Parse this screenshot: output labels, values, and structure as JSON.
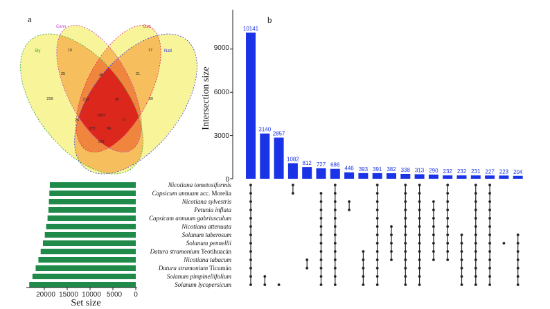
{
  "panel_labels": {
    "a": "a",
    "b": "b"
  },
  "venn": {
    "sets": [
      {
        "name": "Sly",
        "color": "#2ca02c"
      },
      {
        "name": "Cann",
        "color": "#c03cc0"
      },
      {
        "name": "Dstt",
        "color": "#e0205a"
      },
      {
        "name": "Natt",
        "color": "#3a3ae0"
      }
    ],
    "regions": [
      "10",
      "17",
      "209",
      "25",
      "45",
      "21",
      "60",
      "212",
      "60",
      "1602",
      "26",
      "17",
      "272",
      "86",
      "163"
    ],
    "colors": {
      "fill": "#f7f49a",
      "overlap2": "#f5b04c",
      "overlap3": "#ee7e3c",
      "core": "#d81818"
    }
  },
  "chart_data": {
    "type": "bar",
    "title": "",
    "ylabel": "Intersection size",
    "xlabel": "",
    "ylim": [
      0,
      11500
    ],
    "yticks": [
      "0",
      "3000",
      "6000",
      "9000"
    ],
    "bar_color": "#1a33e6",
    "values": [
      10141,
      3140,
      2857,
      1082,
      812,
      727,
      686,
      446,
      393,
      391,
      382,
      338,
      313,
      290,
      232,
      232,
      231,
      227,
      223,
      204
    ],
    "set_names": [
      [
        "Nicotiana tometosiformis",
        ""
      ],
      [
        "Capsicum annuum ",
        "acc. Morelia"
      ],
      [
        "Nicotiana sylvestris",
        ""
      ],
      [
        "Petunia inflata",
        ""
      ],
      [
        "Capsicum annuum gabriusculum",
        ""
      ],
      [
        "Nicotiana attenuata",
        ""
      ],
      [
        "Solanum tuberosum",
        ""
      ],
      [
        "Solanum pennellii",
        ""
      ],
      [
        "Datura stramonium ",
        "Teotihuacán"
      ],
      [
        "Nicotiana tabacum",
        ""
      ],
      [
        "Datura stramonium ",
        "Ticumán"
      ],
      [
        "Solanum pimpinellifolium",
        ""
      ],
      [
        "Solanum lycopersicum",
        ""
      ]
    ],
    "membership": [
      [
        0,
        1,
        2,
        3,
        4,
        5,
        6,
        7,
        8,
        9,
        10,
        11,
        12
      ],
      [
        11,
        12
      ],
      [
        12
      ],
      [
        0,
        1
      ],
      [
        9,
        10
      ],
      [
        1,
        2,
        3,
        4,
        5,
        6,
        7,
        8,
        9,
        10,
        11,
        12
      ],
      [
        0,
        1,
        2,
        3,
        4,
        5,
        6,
        7,
        8,
        9,
        10,
        11,
        12
      ],
      [
        2,
        3
      ],
      [
        8,
        9,
        10,
        11,
        12
      ],
      [
        0,
        1,
        2,
        3,
        4,
        5,
        6,
        7,
        8,
        9,
        10,
        11,
        12
      ],
      [
        5,
        6,
        7,
        8,
        9
      ],
      [
        0,
        1,
        2,
        3,
        4,
        5,
        6,
        7,
        8,
        9,
        10,
        11,
        12
      ],
      [
        0,
        1,
        2,
        3,
        4,
        5,
        6,
        7,
        8,
        9,
        10,
        11,
        12
      ],
      [
        2,
        3,
        4,
        5,
        6,
        7,
        8,
        9
      ],
      [
        0,
        1,
        2,
        3,
        4,
        5,
        6,
        7,
        8,
        9
      ],
      [
        6,
        7,
        8,
        9,
        10,
        11,
        12
      ],
      [
        0,
        1,
        2,
        3,
        4,
        5,
        6,
        7,
        8,
        9,
        10,
        11,
        12
      ],
      [
        0,
        1,
        2,
        3,
        4,
        5,
        6,
        7,
        8,
        9,
        10,
        11,
        12
      ],
      [
        7
      ],
      [
        6,
        7,
        8,
        9,
        10,
        11,
        12
      ]
    ],
    "set_size": {
      "xlabel": "Set size",
      "xticks": [
        "20000",
        "15000",
        "10000",
        "5000",
        "0"
      ],
      "xlim": [
        25000,
        0
      ],
      "color": "#1f8a4a",
      "values": [
        18800,
        18900,
        19000,
        19100,
        19300,
        19600,
        19900,
        20300,
        20800,
        21300,
        21900,
        22600,
        23300
      ]
    }
  }
}
